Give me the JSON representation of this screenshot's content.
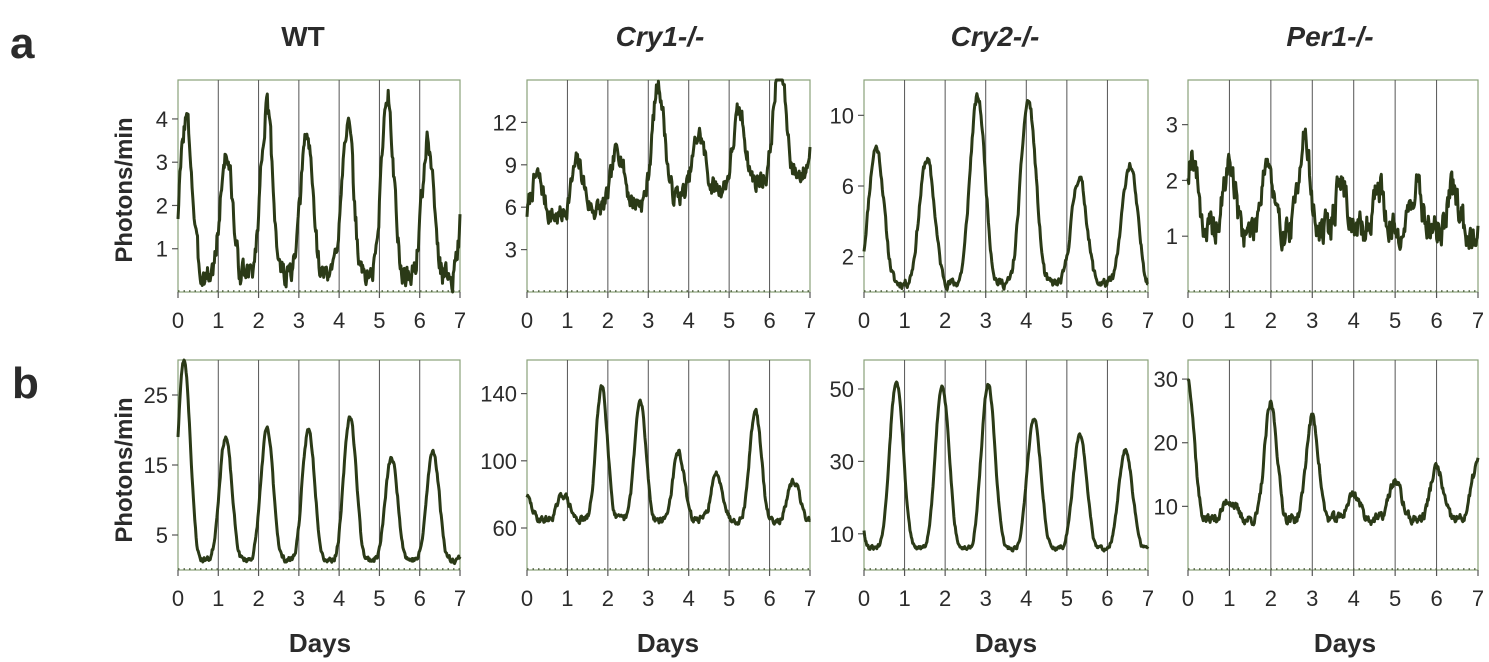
{
  "figure": {
    "row_labels": [
      "a",
      "b"
    ],
    "column_titles": [
      "WT",
      "Cry1-/-",
      "Cry2-/-",
      "Per1-/-"
    ],
    "ylabel": "Photons/min",
    "xlabel": "Days"
  },
  "colors": {
    "trace": "#2b3a17",
    "frame": "#8aa27a",
    "gridline": "#555555",
    "text": "#2b2b2b"
  },
  "chart_data": [
    {
      "type": "line",
      "panel": "a-WT",
      "ylabel": "Photons/min",
      "xlim": [
        0,
        7
      ],
      "ylim": [
        0,
        4.9
      ],
      "x_ticks": [
        "0",
        "1",
        "2",
        "3",
        "4",
        "5",
        "6",
        "7"
      ],
      "y_ticks": [
        {
          "v": 1,
          "label": "1"
        },
        {
          "v": 2,
          "label": "2"
        },
        {
          "v": 3,
          "label": "3"
        },
        {
          "v": 4,
          "label": "4"
        }
      ],
      "period": 1.0,
      "phase": 0.2,
      "peaks": [
        4.0,
        3.2,
        4.2,
        3.6,
        3.9,
        4.6,
        3.4
      ],
      "trough": 0.4,
      "trend": 0,
      "noise": 0.55,
      "seed": 3
    },
    {
      "type": "line",
      "panel": "a-Cry1-/-",
      "xlim": [
        0,
        7
      ],
      "ylim": [
        0,
        15
      ],
      "x_ticks": [
        "0",
        "1",
        "2",
        "3",
        "4",
        "5",
        "6",
        "7"
      ],
      "y_ticks": [
        {
          "v": 3,
          "label": "3"
        },
        {
          "v": 6,
          "label": "6"
        },
        {
          "v": 9,
          "label": "9"
        },
        {
          "v": 12,
          "label": "12"
        }
      ],
      "period": 1.0,
      "phase": 0.25,
      "peaks": [
        8,
        8.5,
        9,
        13,
        9,
        10,
        13
      ],
      "trough": 5,
      "trend": 0.5,
      "noise": 1.4,
      "seed": 7
    },
    {
      "type": "line",
      "panel": "a-Cry2-/-",
      "xlim": [
        0,
        7
      ],
      "ylim": [
        0,
        12
      ],
      "x_ticks": [
        "0",
        "1",
        "2",
        "3",
        "4",
        "5",
        "6",
        "7"
      ],
      "y_ticks": [
        {
          "v": 2,
          "label": "2"
        },
        {
          "v": 6,
          "label": "6"
        },
        {
          "v": 10,
          "label": "10"
        }
      ],
      "period": 1.25,
      "phase": 0.3,
      "peaks": [
        8.2,
        7.5,
        11,
        10.8,
        6.5,
        7.2
      ],
      "trough": 0.5,
      "trend": 0,
      "noise": 0.5,
      "seed": 11
    },
    {
      "type": "line",
      "panel": "a-Per1-/-",
      "xlim": [
        0,
        7
      ],
      "ylim": [
        0,
        3.8
      ],
      "x_ticks": [
        "0",
        "1",
        "2",
        "3",
        "4",
        "5",
        "6",
        "7"
      ],
      "y_ticks": [
        {
          "v": 1,
          "label": "1"
        },
        {
          "v": 2,
          "label": "2"
        },
        {
          "v": 3,
          "label": "3"
        }
      ],
      "period": 0.9,
      "phase": 0.1,
      "peaks": [
        2.5,
        2.3,
        2.4,
        2.8,
        2.0,
        1.9,
        1.9,
        1.8
      ],
      "trough": 1.1,
      "trend": 0,
      "noise": 0.55,
      "seed": 19
    },
    {
      "type": "line",
      "panel": "b-WT",
      "ylabel": "Photons/min",
      "xlim": [
        0,
        7
      ],
      "ylim": [
        0,
        30
      ],
      "x_ticks": [
        "0",
        "1",
        "2",
        "3",
        "4",
        "5",
        "6",
        "7"
      ],
      "y_ticks": [
        {
          "v": 5,
          "label": "5"
        },
        {
          "v": 15,
          "label": "15"
        },
        {
          "v": 25,
          "label": "25"
        }
      ],
      "period": 1.03,
      "phase": 0.15,
      "peaks": [
        30,
        19,
        20,
        20,
        22,
        16,
        17
      ],
      "trough": 1.5,
      "trend": 0,
      "noise": 0.8,
      "seed": 23
    },
    {
      "type": "line",
      "panel": "b-Cry1-/-",
      "xlim": [
        0,
        7
      ],
      "ylim": [
        35,
        160
      ],
      "x_ticks": [
        "0",
        "1",
        "2",
        "3",
        "4",
        "5",
        "6",
        "7"
      ],
      "y_ticks": [
        {
          "v": 60,
          "label": "60"
        },
        {
          "v": 100,
          "label": "100"
        },
        {
          "v": 140,
          "label": "140"
        }
      ],
      "period": 0.95,
      "phase": 0.9,
      "peaks": [
        80,
        145,
        135,
        105,
        92,
        130,
        88,
        85
      ],
      "trough": 65,
      "trend": 0,
      "noise": 4,
      "seed": 29
    },
    {
      "type": "line",
      "panel": "b-Cry2-/-",
      "xlim": [
        0,
        7
      ],
      "ylim": [
        0,
        58
      ],
      "x_ticks": [
        "0",
        "1",
        "2",
        "3",
        "4",
        "5",
        "6",
        "7"
      ],
      "y_ticks": [
        {
          "v": 10,
          "label": "10"
        },
        {
          "v": 30,
          "label": "30"
        },
        {
          "v": 50,
          "label": "50"
        }
      ],
      "period": 1.13,
      "phase": 0.8,
      "peaks": [
        52,
        51,
        51,
        42,
        37,
        33
      ],
      "trough": 6,
      "trend": 0,
      "noise": 1.2,
      "seed": 31
    },
    {
      "type": "line",
      "panel": "b-Per1-/-",
      "xlim": [
        0,
        7
      ],
      "ylim": [
        0,
        33
      ],
      "x_ticks": [
        "0",
        "1",
        "2",
        "3",
        "4",
        "5",
        "6",
        "7"
      ],
      "y_ticks": [
        {
          "v": 10,
          "label": "10"
        },
        {
          "v": 20,
          "label": "20"
        },
        {
          "v": 30,
          "label": "30"
        }
      ],
      "period": 1.0,
      "phase": 0.0,
      "peaks": [
        30,
        11,
        26,
        24,
        12,
        14,
        16,
        17
      ],
      "trough": 8,
      "trend": 0,
      "noise": 1.5,
      "seed": 37
    }
  ]
}
